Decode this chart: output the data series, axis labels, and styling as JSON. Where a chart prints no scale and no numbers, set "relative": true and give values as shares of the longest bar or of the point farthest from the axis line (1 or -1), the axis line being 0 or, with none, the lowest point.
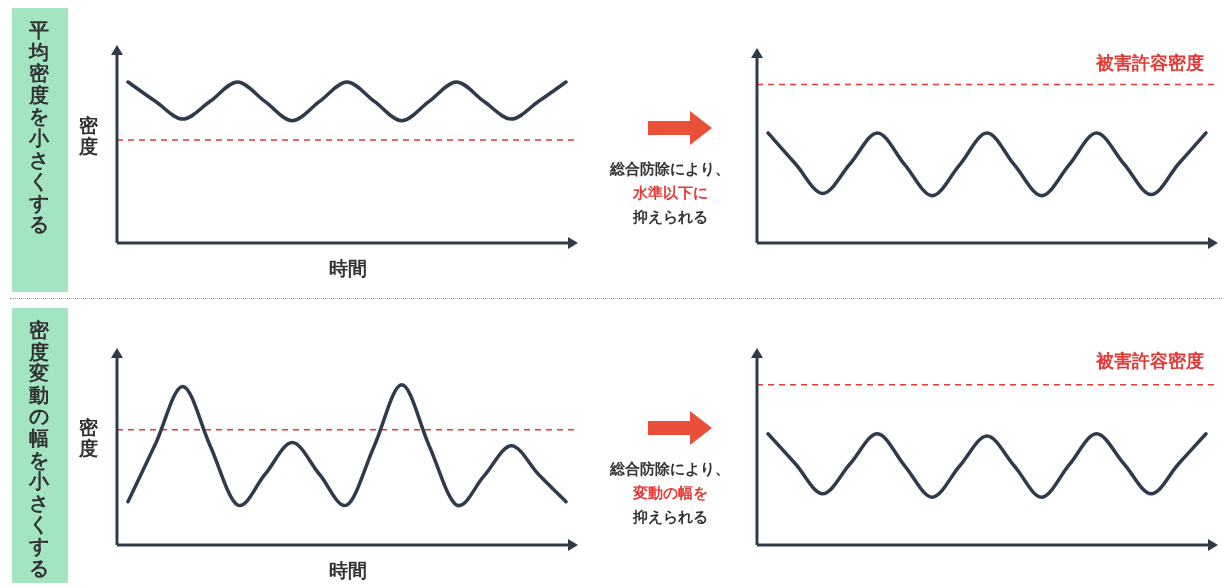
{
  "chart_data": [
    {
      "type": "line",
      "relative": true,
      "xlabel": "時間",
      "ylabel": "密度",
      "annotations": [
        "平均密度を小さくする"
      ],
      "categories": [
        null,
        null,
        null,
        null,
        null,
        null,
        null,
        null,
        null,
        null,
        null,
        null,
        null,
        null,
        null,
        null,
        null
      ],
      "series": [
        {
          "color": "#2f3b4c",
          "values": [
            1,
            0.88,
            0.77,
            0.88,
            1,
            0.88,
            0.76,
            0.88,
            1,
            0.88,
            0.76,
            0.88,
            1,
            0.88,
            0.77,
            0.88,
            1
          ]
        }
      ],
      "ref_lines": [
        {
          "axis": "y",
          "value": 0.64,
          "color": "#e53935",
          "line_style": "dashed"
        }
      ]
    },
    {
      "type": "line",
      "relative": true,
      "annotations": [
        "総合防除により、",
        "水準以下に",
        "抑えられる"
      ],
      "categories": [
        null,
        null,
        null,
        null,
        null,
        null,
        null,
        null,
        null,
        null,
        null,
        null,
        null,
        null,
        null,
        null,
        null
      ],
      "series": [
        {
          "color": "#2f3b4c",
          "values": [
            1,
            0.72,
            0.45,
            0.72,
            1,
            0.71,
            0.43,
            0.71,
            1,
            0.71,
            0.43,
            0.71,
            1,
            0.72,
            0.44,
            0.72,
            1
          ]
        }
      ],
      "ref_lines": [
        {
          "axis": "y",
          "value": 1.44,
          "label": "被害許容密度",
          "color": "#e53935",
          "line_style": "dashed"
        }
      ]
    },
    {
      "type": "line",
      "relative": true,
      "xlabel": "時間",
      "ylabel": "密度",
      "annotations": [
        "密度変動の幅を小さくする"
      ],
      "categories": [
        null,
        null,
        null,
        null,
        null,
        null,
        null,
        null,
        null,
        null,
        null,
        null,
        null,
        null,
        null,
        null,
        null
      ],
      "series": [
        {
          "color": "#2f3b4c",
          "values": [
            0.27,
            0.63,
            0.99,
            0.62,
            0.25,
            0.44,
            0.64,
            0.44,
            0.25,
            0.62,
            1,
            0.62,
            0.25,
            0.43,
            0.62,
            0.44,
            0.27
          ]
        }
      ],
      "ref_lines": [
        {
          "axis": "y",
          "value": 0.72,
          "color": "#e53935",
          "line_style": "dashed"
        }
      ]
    },
    {
      "type": "line",
      "relative": true,
      "annotations": [
        "総合防除により、",
        "変動の幅を",
        "抑えられる"
      ],
      "categories": [
        null,
        null,
        null,
        null,
        null,
        null,
        null,
        null,
        null,
        null,
        null,
        null,
        null,
        null,
        null,
        null,
        null
      ],
      "series": [
        {
          "color": "#2f3b4c",
          "values": [
            1,
            0.73,
            0.46,
            0.73,
            1,
            0.71,
            0.43,
            0.71,
            0.98,
            0.71,
            0.43,
            0.72,
            1,
            0.73,
            0.46,
            0.73,
            1
          ]
        }
      ],
      "ref_lines": [
        {
          "axis": "y",
          "value": 1.44,
          "label": "被害許容密度",
          "color": "#e53935",
          "line_style": "dashed"
        }
      ]
    }
  ]
}
